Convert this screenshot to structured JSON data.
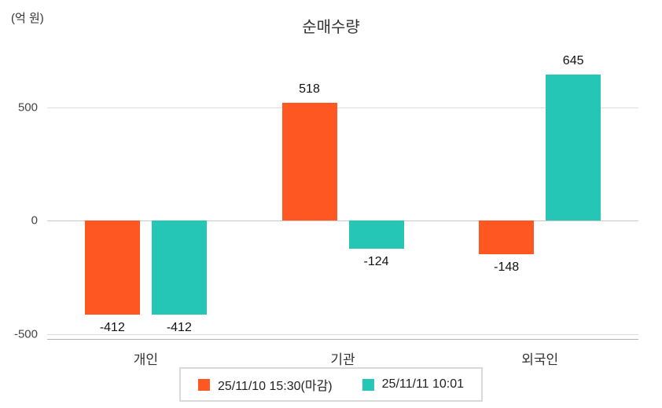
{
  "chart_data": {
    "type": "bar",
    "title": "순매수량",
    "ylabel": "(억 원)",
    "categories": [
      "개인",
      "기관",
      "외국인"
    ],
    "series": [
      {
        "name": "25/11/10 15:30(마감)",
        "color": "#ff5722",
        "values": [
          -412,
          518,
          -148
        ]
      },
      {
        "name": "25/11/11 10:01",
        "color": "#26c6b7",
        "values": [
          -412,
          -124,
          645
        ]
      }
    ],
    "yticks": [
      500,
      0,
      -500
    ],
    "ylim": [
      -520,
      730
    ],
    "grid": true,
    "legend_position": "bottom",
    "background_color": "#ffffff",
    "gridline_color": "#dcdcdc"
  }
}
